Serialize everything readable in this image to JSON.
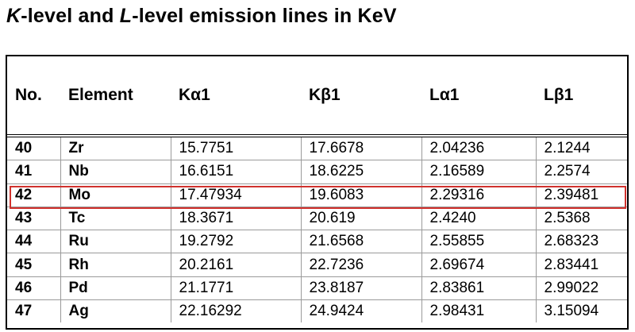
{
  "title": {
    "k_letter": "K",
    "part1": "-level and ",
    "l_letter": "L",
    "part2": "-level emission lines in KeV"
  },
  "table": {
    "headers": [
      "No.",
      "Element",
      "Kα1",
      "Kβ1",
      "Lα1",
      "Lβ1"
    ],
    "rows": [
      [
        "40",
        "Zr",
        "15.7751",
        "17.6678",
        "2.04236",
        "2.1244"
      ],
      [
        "41",
        "Nb",
        "16.6151",
        "18.6225",
        "2.16589",
        "2.2574"
      ],
      [
        "42",
        "Mo",
        "17.47934",
        "19.6083",
        "2.29316",
        "2.39481"
      ],
      [
        "43",
        "Tc",
        "18.3671",
        "20.619",
        "2.4240",
        "2.5368"
      ],
      [
        "44",
        "Ru",
        "19.2792",
        "21.6568",
        "2.55855",
        "2.68323"
      ],
      [
        "45",
        "Rh",
        "20.2161",
        "22.7236",
        "2.69674",
        "2.83441"
      ],
      [
        "46",
        "Pd",
        "21.1771",
        "23.8187",
        "2.83861",
        "2.99022"
      ],
      [
        "47",
        "Ag",
        "22.16292",
        "24.9424",
        "2.98431",
        "3.15094"
      ]
    ],
    "highlighted_element": "Mo",
    "highlight_color": "#d0312d"
  }
}
